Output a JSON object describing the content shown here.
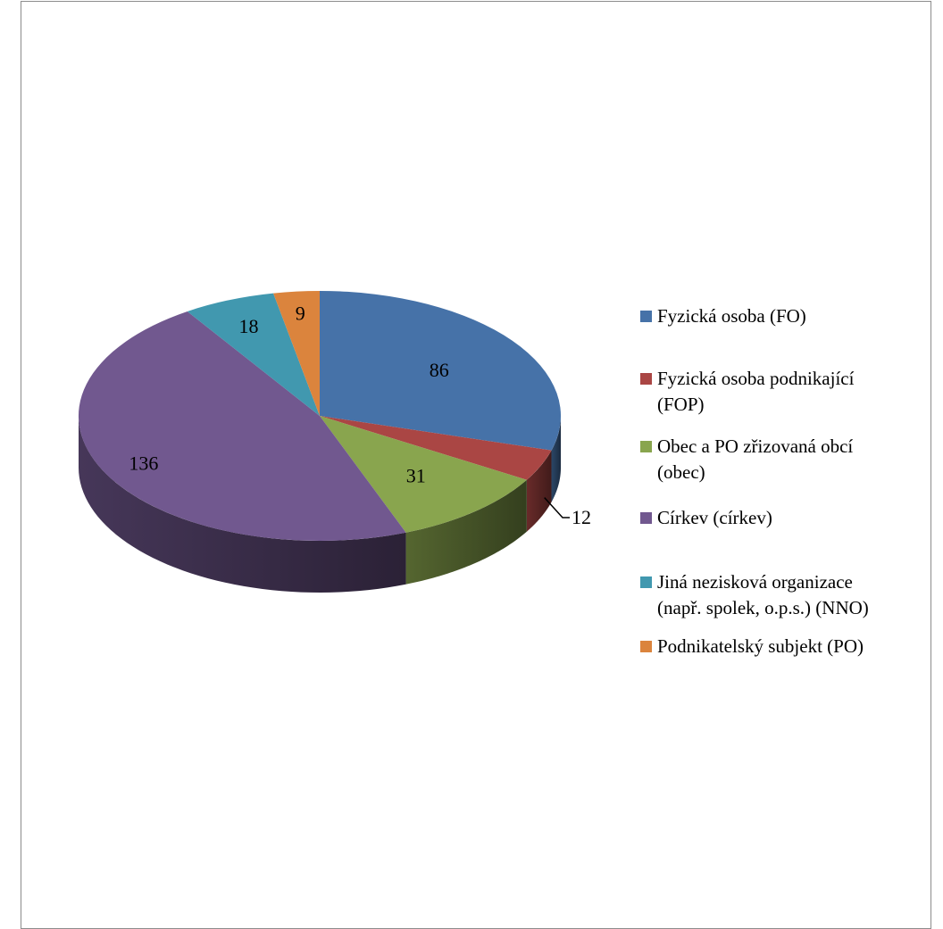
{
  "chart_data": {
    "type": "pie",
    "style": "3d",
    "legend_position": "right",
    "slices": [
      {
        "label": "Fyzická osoba (FO)",
        "value": 86,
        "color": "#4672A8"
      },
      {
        "label": "Fyzická osoba podnikající (FOP)",
        "value": 12,
        "color": "#AA4644"
      },
      {
        "label": "Obec a PO zřizovaná obcí (obec)",
        "value": 31,
        "color": "#89A54E"
      },
      {
        "label": "Církev (církev)",
        "value": 136,
        "color": "#71588F"
      },
      {
        "label": "Jiná nezisková organizace (např. spolek, o.p.s.) (NNO)",
        "value": 18,
        "color": "#4198AF"
      },
      {
        "label": "Podnikatelský subjekt (PO)",
        "value": 9,
        "color": "#DB843D"
      }
    ],
    "legend_lines": [
      "Fyzická osoba (FO)",
      "Fyzická osoba podnikající\n(FOP)",
      "Obec a PO zřizovaná obcí\n(obec)",
      "Církev (církev)",
      "Jiná nezisková organizace\n(např. spolek, o.p.s.) (NNO)",
      "Podnikatelský subjekt (PO)"
    ],
    "data_labels": [
      "86",
      "12",
      "31",
      "136",
      "18",
      "9"
    ]
  }
}
